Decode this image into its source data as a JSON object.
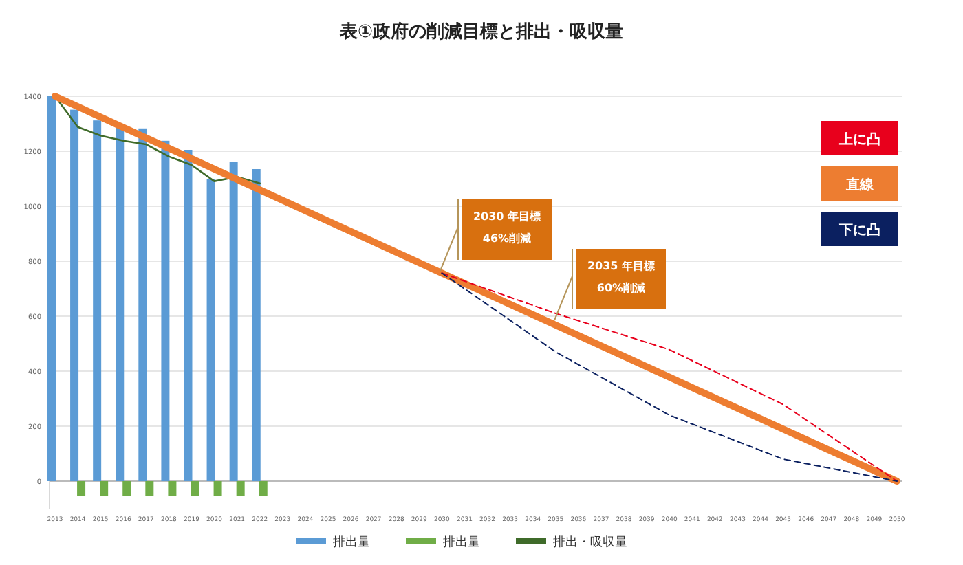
{
  "chart_data": {
    "type": "bar",
    "title": "表①政府の削減目標と排出・吸収量",
    "categories": [
      "2013",
      "2014",
      "2015",
      "2016",
      "2017",
      "2018",
      "2019",
      "2020",
      "2021",
      "2022",
      "2023",
      "2024",
      "2025",
      "2026",
      "2027",
      "2028",
      "2029",
      "2030",
      "2031",
      "2032",
      "2033",
      "2034",
      "2035",
      "2036",
      "2037",
      "2038",
      "2039",
      "2040",
      "2041",
      "2042",
      "2043",
      "2044",
      "2045",
      "2046",
      "2047",
      "2048",
      "2049",
      "2050"
    ],
    "series": [
      {
        "name": "排出量",
        "color": "#5b9bd5",
        "values": [
          1400,
          1351,
          1312,
          1291,
          1283,
          1238,
          1205,
          1100,
          1162,
          1135,
          null,
          null,
          null,
          null,
          null,
          null,
          null,
          null,
          null,
          null,
          null,
          null,
          null,
          null,
          null,
          null,
          null,
          null,
          null,
          null,
          null,
          null,
          null,
          null,
          null,
          null,
          null,
          null
        ]
      },
      {
        "name": "排出量",
        "color": "#70ad47",
        "values": [
          null,
          -55,
          -55,
          -55,
          -55,
          -55,
          -55,
          -55,
          -55,
          -55,
          null,
          null,
          null,
          null,
          null,
          null,
          null,
          null,
          null,
          null,
          null,
          null,
          null,
          null,
          null,
          null,
          null,
          null,
          null,
          null,
          null,
          null,
          null,
          null,
          null,
          null,
          null,
          null
        ]
      },
      {
        "name": "排出・吸収量",
        "type": "line",
        "color": "#3f6b2a",
        "values": [
          1400,
          1288,
          1257,
          1238,
          1225,
          1181,
          1150,
          1091,
          1107,
          1083,
          null,
          null,
          null,
          null,
          null,
          null,
          null,
          null,
          null,
          null,
          null,
          null,
          null,
          null,
          null,
          null,
          null,
          null,
          null,
          null,
          null,
          null,
          null,
          null,
          null,
          null,
          null,
          null
        ]
      },
      {
        "name": "上に凸",
        "type": "line",
        "line_style": "dashed",
        "color": "#e8001c",
        "values": [
          null,
          null,
          null,
          null,
          null,
          null,
          null,
          null,
          null,
          null,
          null,
          null,
          null,
          null,
          null,
          null,
          null,
          757,
          null,
          null,
          null,
          null,
          610,
          null,
          null,
          null,
          null,
          478,
          null,
          null,
          null,
          null,
          279,
          null,
          null,
          null,
          null,
          0
        ]
      },
      {
        "name": "直線",
        "type": "line",
        "color": "#ed7d31",
        "values": [
          1400,
          null,
          null,
          null,
          null,
          null,
          null,
          null,
          null,
          null,
          null,
          null,
          null,
          null,
          null,
          null,
          null,
          null,
          null,
          null,
          null,
          null,
          null,
          null,
          null,
          null,
          null,
          null,
          null,
          null,
          null,
          null,
          null,
          null,
          null,
          null,
          null,
          0
        ]
      },
      {
        "name": "下に凸",
        "type": "line",
        "line_style": "dashed",
        "color": "#0b2060",
        "values": [
          null,
          null,
          null,
          null,
          null,
          null,
          null,
          null,
          null,
          null,
          null,
          null,
          null,
          null,
          null,
          null,
          null,
          757,
          null,
          null,
          null,
          null,
          470,
          null,
          null,
          null,
          null,
          240,
          null,
          null,
          null,
          null,
          80,
          null,
          null,
          null,
          null,
          0
        ]
      }
    ],
    "ylim": [
      -100,
      1400
    ],
    "yticks": [
      0,
      200,
      400,
      600,
      800,
      1000,
      1200,
      1400
    ],
    "grid": "y",
    "legend": "bottom",
    "annotations": [
      "2030 年目標\n46%削減",
      "2035 年目標\n60%削減"
    ]
  }
}
